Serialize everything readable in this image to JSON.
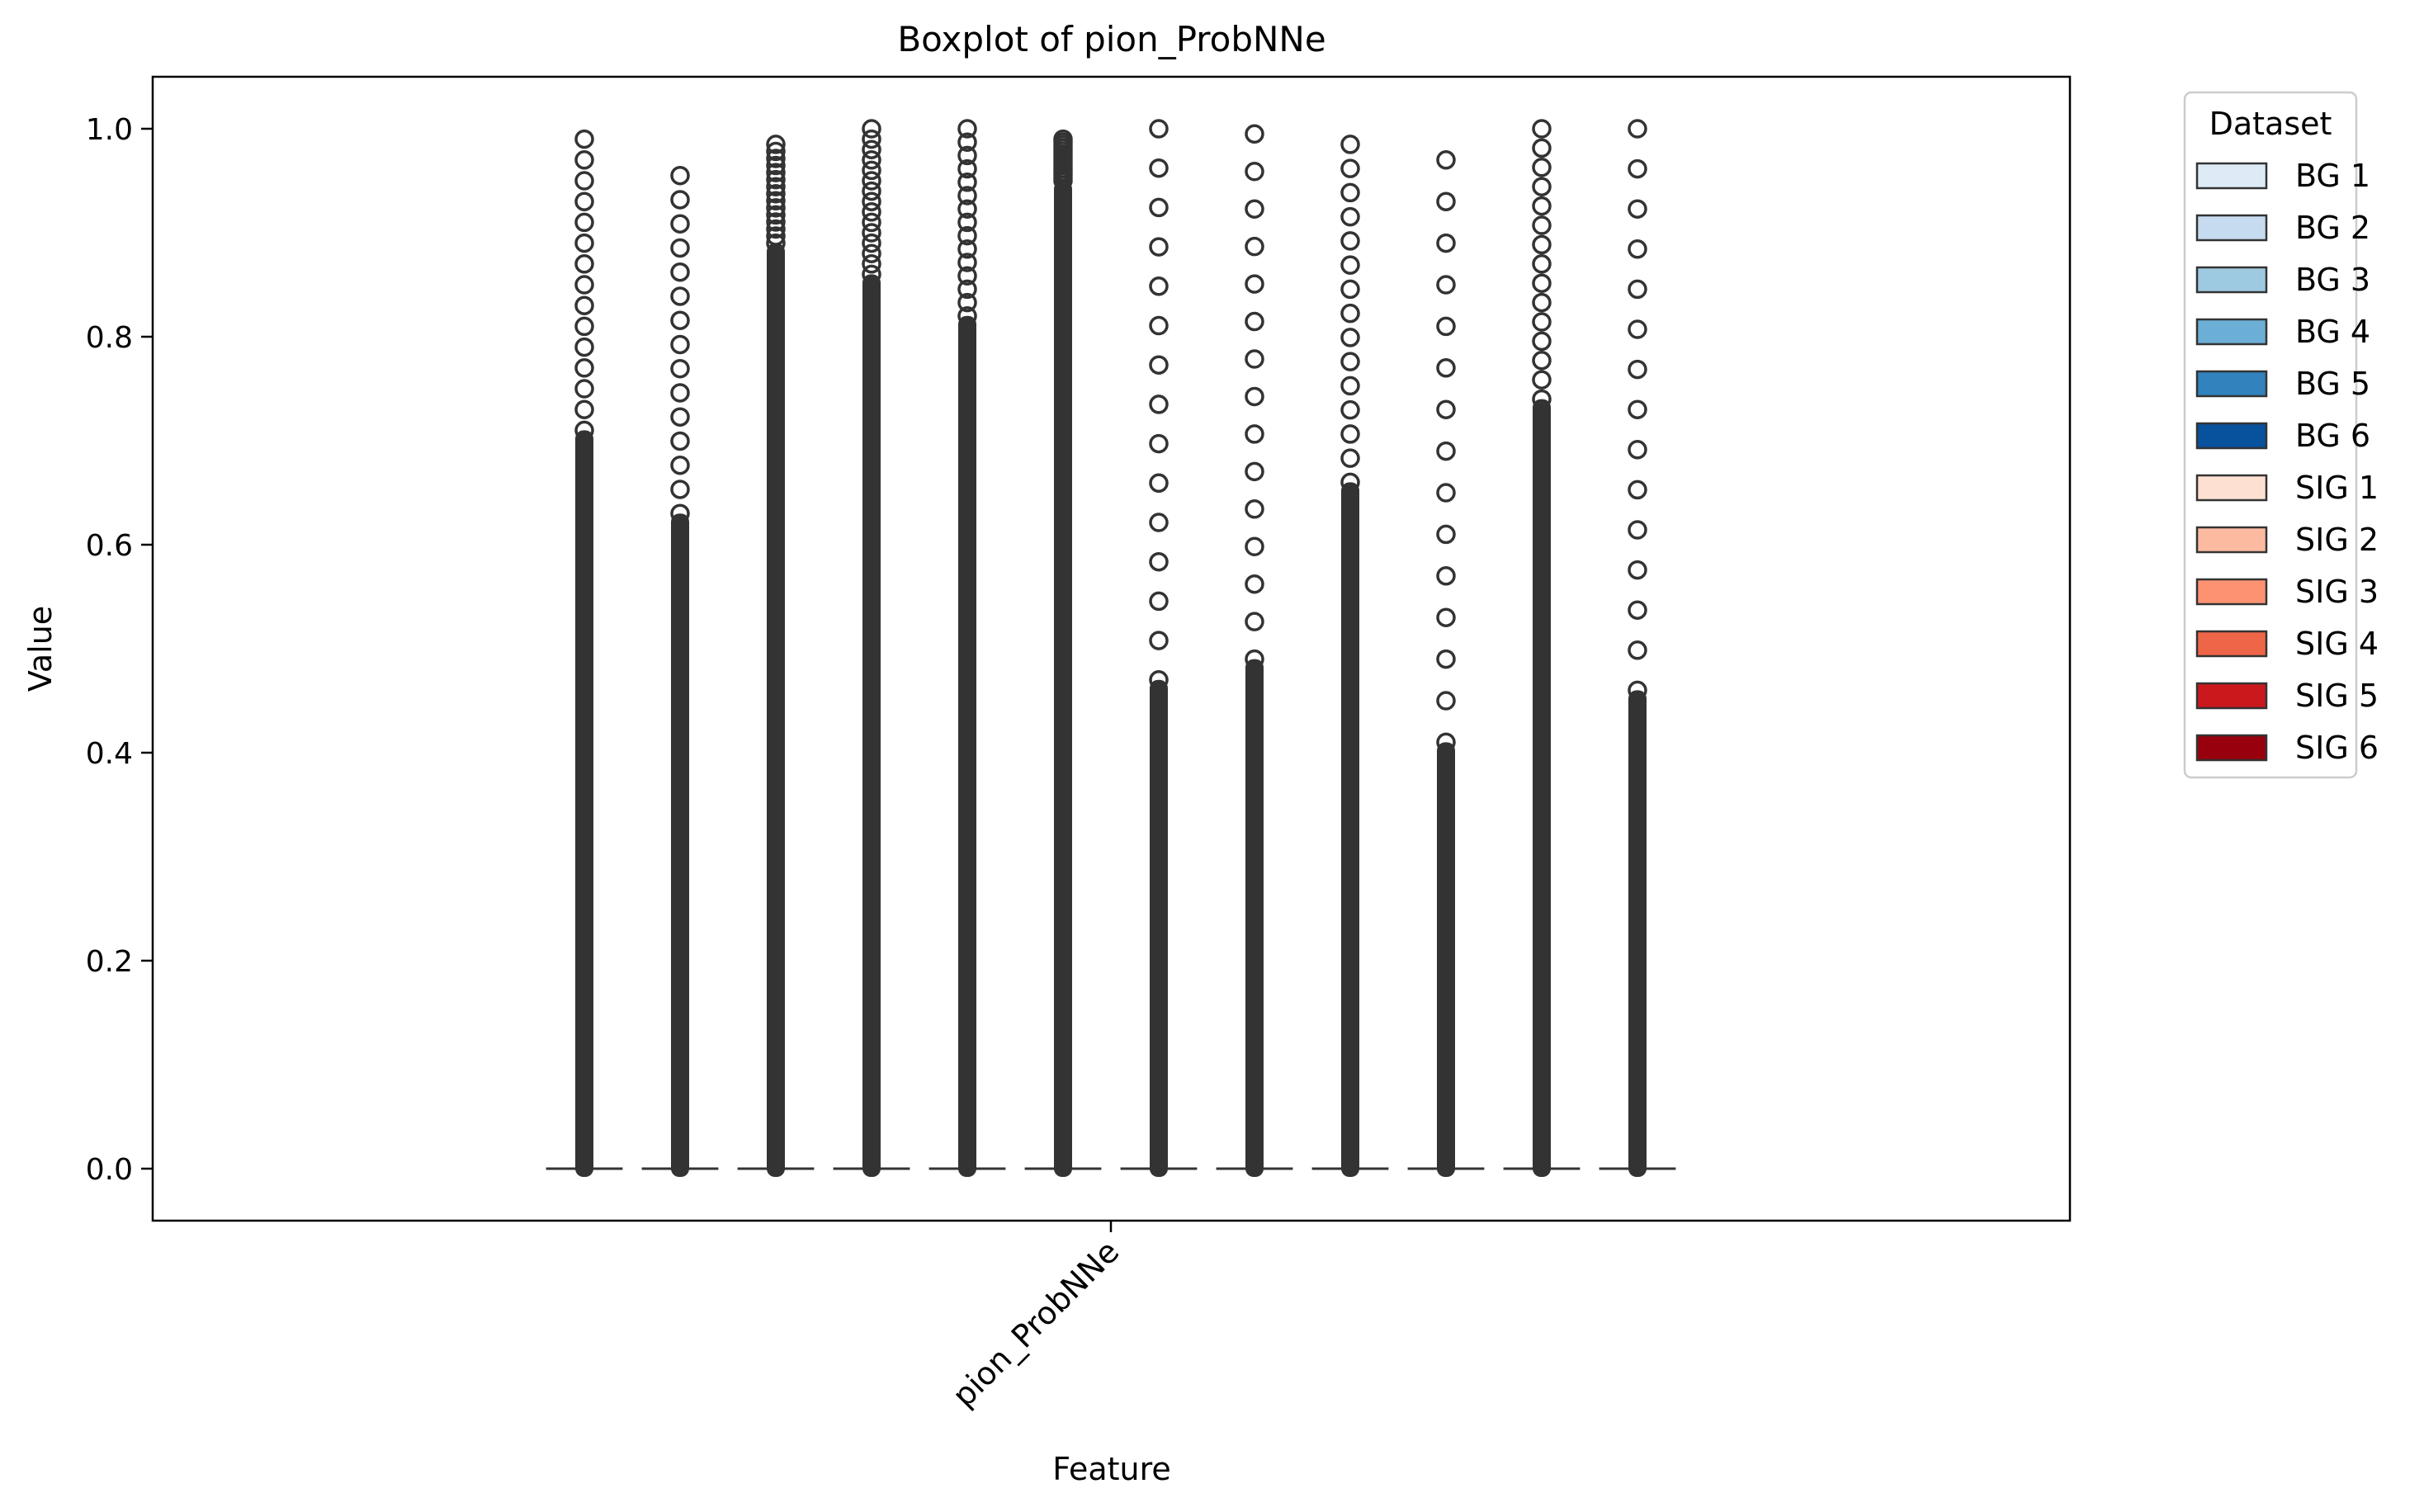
{
  "chart_data": {
    "type": "box",
    "title": "Boxplot of pion_ProbNNe",
    "xlabel": "Feature",
    "ylabel": "Value",
    "categories": [
      "pion_ProbNNe"
    ],
    "ylim": [
      -0.05,
      1.05
    ],
    "yticks": [
      0.0,
      0.2,
      0.4,
      0.6,
      0.8,
      1.0
    ],
    "ytick_labels": [
      "0.0",
      "0.2",
      "0.4",
      "0.6",
      "0.8",
      "1.0"
    ],
    "grid": false,
    "legend": {
      "title": "Dataset",
      "placement": "outside-top-right"
    },
    "series": [
      {
        "name": "BG 1",
        "color": "#deebf7",
        "q1": 0,
        "median": 0,
        "q3": 0,
        "whisker_low": 0,
        "whisker_high": 0,
        "outlier_max": 0.99,
        "dense_to": 0.71
      },
      {
        "name": "BG 2",
        "color": "#c6dbef",
        "q1": 0,
        "median": 0,
        "q3": 0,
        "whisker_low": 0,
        "whisker_high": 0,
        "outlier_max": 0.955,
        "dense_to": 0.63
      },
      {
        "name": "BG 3",
        "color": "#9ecae1",
        "q1": 0,
        "median": 0,
        "q3": 0,
        "whisker_low": 0,
        "whisker_high": 0,
        "outlier_max": 0.985,
        "dense_to": 0.89
      },
      {
        "name": "BG 4",
        "color": "#6baed6",
        "q1": 0,
        "median": 0,
        "q3": 0,
        "whisker_low": 0,
        "whisker_high": 0,
        "outlier_max": 1.0,
        "dense_to": 0.86
      },
      {
        "name": "BG 5",
        "color": "#3182bd",
        "q1": 0,
        "median": 0,
        "q3": 0,
        "whisker_low": 0,
        "whisker_high": 0,
        "outlier_max": 1.0,
        "dense_to": 0.82
      },
      {
        "name": "BG 6",
        "color": "#08519c",
        "q1": 0,
        "median": 0,
        "q3": 0,
        "whisker_low": 0,
        "whisker_high": 0,
        "outlier_max": 0.99,
        "dense_to": 0.95
      },
      {
        "name": "SIG 1",
        "color": "#fee0d2",
        "q1": 0,
        "median": 0,
        "q3": 0,
        "whisker_low": 0,
        "whisker_high": 0,
        "outlier_max": 1.0,
        "dense_to": 0.47
      },
      {
        "name": "SIG 2",
        "color": "#fcbba1",
        "q1": 0,
        "median": 0,
        "q3": 0,
        "whisker_low": 0,
        "whisker_high": 0,
        "outlier_max": 0.995,
        "dense_to": 0.49
      },
      {
        "name": "SIG 3",
        "color": "#fc9272",
        "q1": 0,
        "median": 0,
        "q3": 0,
        "whisker_low": 0,
        "whisker_high": 0,
        "outlier_max": 0.985,
        "dense_to": 0.66
      },
      {
        "name": "SIG 4",
        "color": "#ef6548",
        "q1": 0,
        "median": 0,
        "q3": 0,
        "whisker_low": 0,
        "whisker_high": 0,
        "outlier_max": 0.97,
        "dense_to": 0.41
      },
      {
        "name": "SIG 5",
        "color": "#cb181d",
        "q1": 0,
        "median": 0,
        "q3": 0,
        "whisker_low": 0,
        "whisker_high": 0,
        "outlier_max": 1.0,
        "dense_to": 0.74
      },
      {
        "name": "SIG 6",
        "color": "#99000d",
        "q1": 0,
        "median": 0,
        "q3": 0,
        "whisker_low": 0,
        "whisker_high": 0,
        "outlier_max": 1.0,
        "dense_to": 0.46
      }
    ]
  }
}
